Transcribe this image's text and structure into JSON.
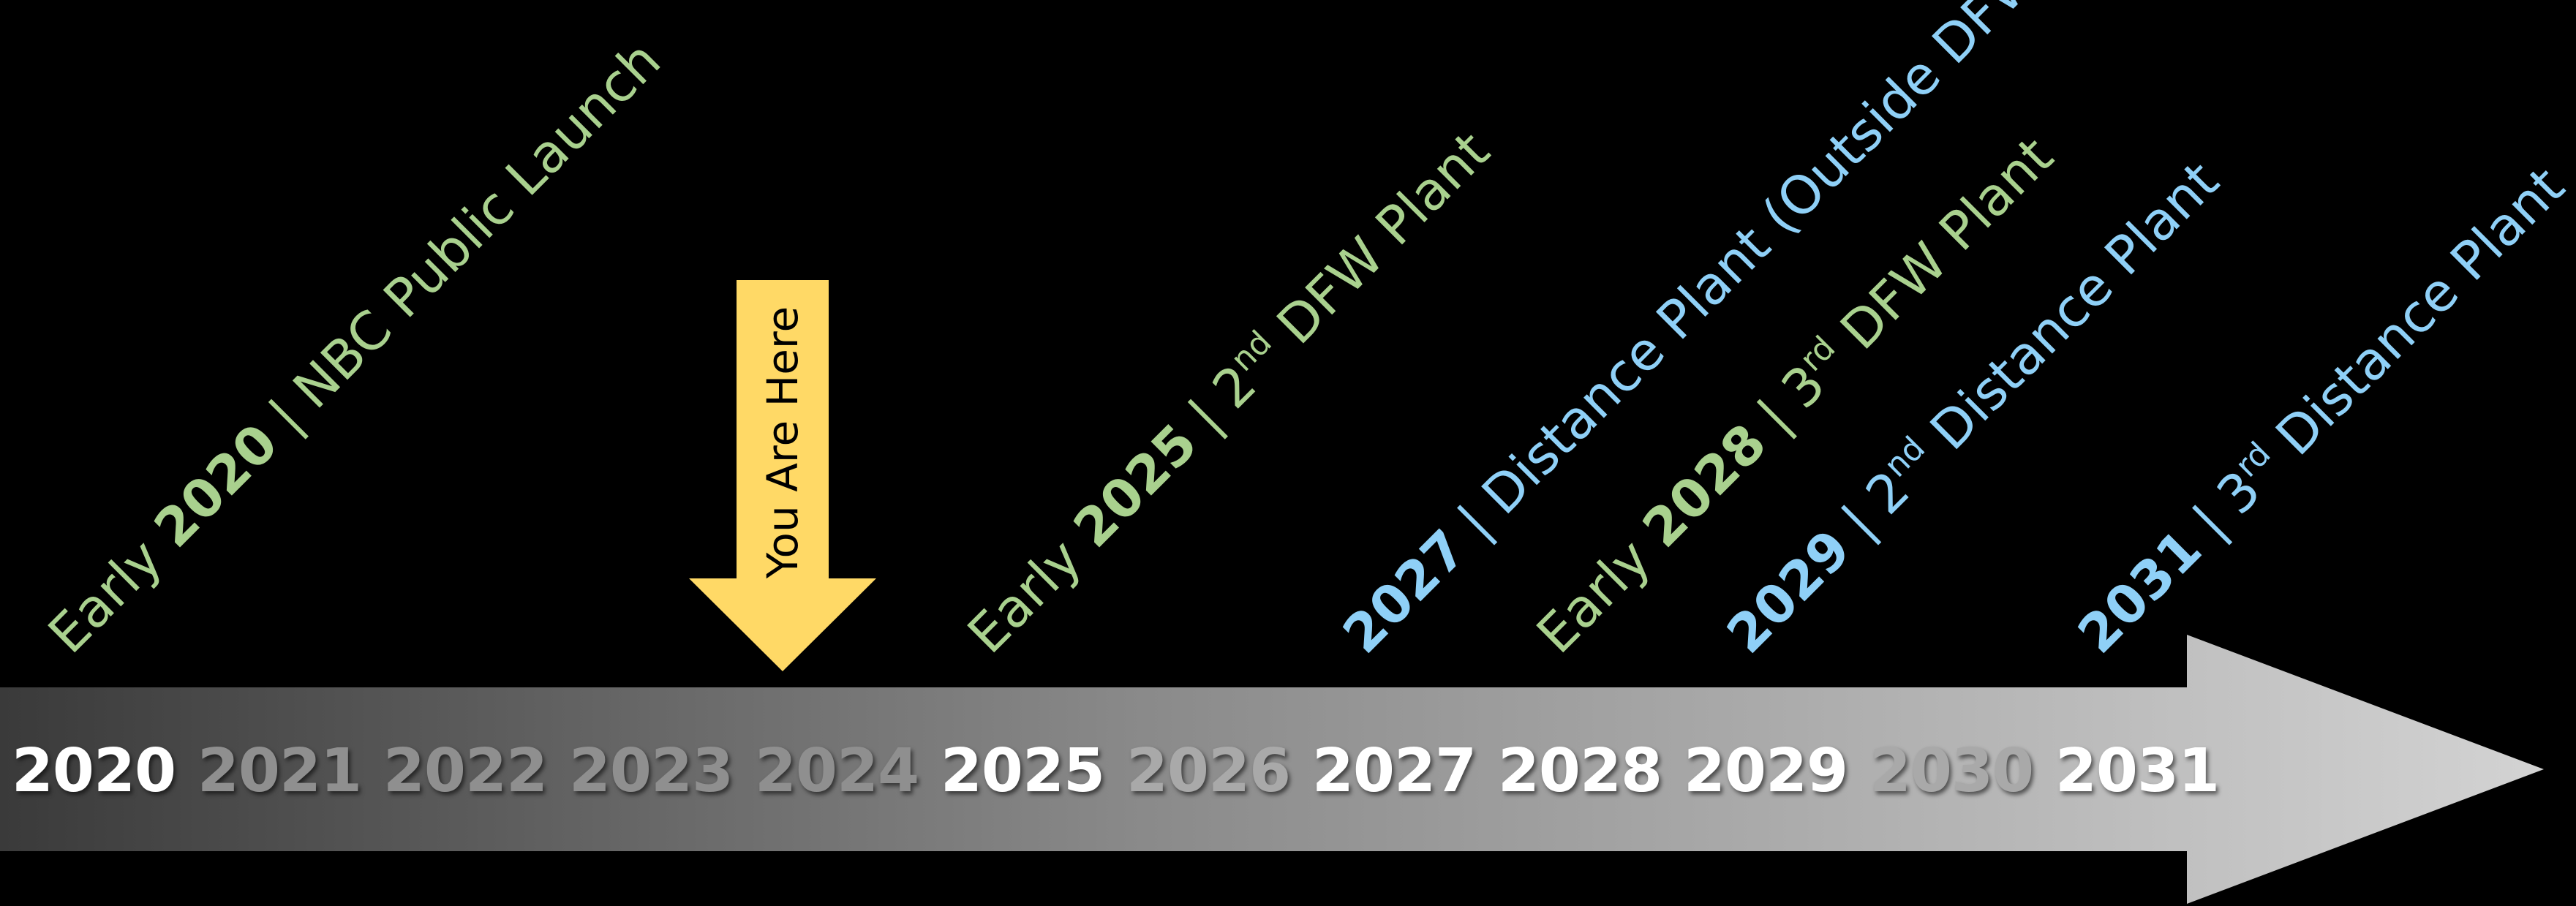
{
  "colors": {
    "background": "#000000",
    "arrow_start": "#3a3a3a",
    "arrow_end": "#d3d3d3",
    "year_active": "#ffffff",
    "year_inactive": "#8f8f8f",
    "milestone_green": "#a9d18e",
    "milestone_blue": "#8fd0f7",
    "marker": "#ffd966"
  },
  "timeline": {
    "years": [
      {
        "label": "2020",
        "active": true
      },
      {
        "label": "2021",
        "active": false
      },
      {
        "label": "2022",
        "active": false
      },
      {
        "label": "2023",
        "active": false
      },
      {
        "label": "2024",
        "active": false
      },
      {
        "label": "2025",
        "active": true
      },
      {
        "label": "2026",
        "active": false
      },
      {
        "label": "2027",
        "active": true
      },
      {
        "label": "2028",
        "active": true
      },
      {
        "label": "2029",
        "active": true
      },
      {
        "label": "2030",
        "active": false
      },
      {
        "label": "2031",
        "active": true
      }
    ]
  },
  "marker": {
    "label": "You Are Here",
    "year": "2024"
  },
  "milestones": [
    {
      "prefix": "Early ",
      "year": "2020",
      "separator": "|",
      "text": "NBC Public Launch",
      "ordinal": "",
      "suffix": "",
      "color": "green"
    },
    {
      "prefix": "Early ",
      "year": "2025",
      "separator": "|",
      "text": "2",
      "ordinal": "nd",
      "suffix": " DFW Plant",
      "color": "green"
    },
    {
      "prefix": "",
      "year": "2027",
      "separator": "|",
      "text": "Distance Plant (Outside DFW)",
      "ordinal": "",
      "suffix": "",
      "color": "blue"
    },
    {
      "prefix": "Early ",
      "year": "2028",
      "separator": "|",
      "text": "3",
      "ordinal": "rd",
      "suffix": " DFW Plant",
      "color": "green"
    },
    {
      "prefix": "",
      "year": "2029",
      "separator": "|",
      "text": "2",
      "ordinal": "nd",
      "suffix": " Distance Plant",
      "color": "blue"
    },
    {
      "prefix": "",
      "year": "2031",
      "separator": "|",
      "text": "3",
      "ordinal": "rd",
      "suffix": " Distance Plant",
      "color": "blue"
    }
  ]
}
